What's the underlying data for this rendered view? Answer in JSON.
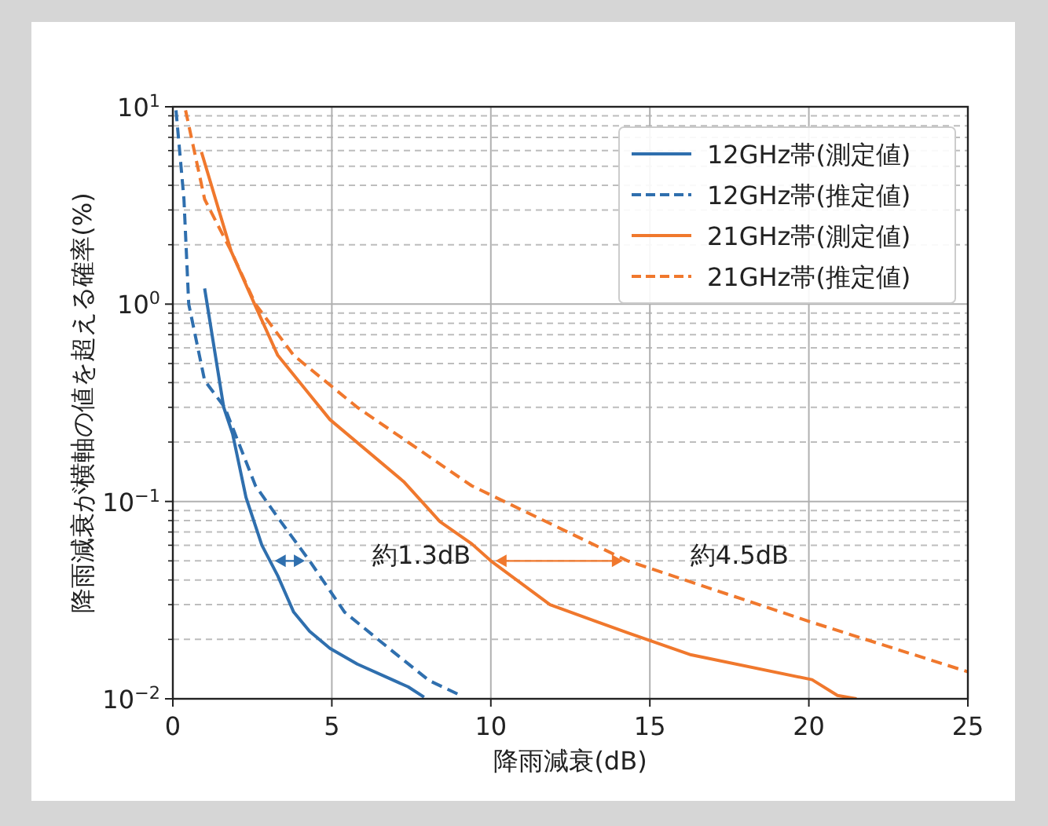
{
  "chart_data": {
    "type": "line",
    "xlabel": "降雨減衰(dB)",
    "ylabel": "降雨減衰が横軸の値を超える確率(%)",
    "xlim": [
      0,
      25
    ],
    "ylim": [
      0.01,
      10
    ],
    "log": "y",
    "xticks": [
      0,
      5,
      10,
      15,
      20,
      25
    ],
    "yticks": [
      {
        "value": 0.01,
        "label": "10$^{−2}$"
      },
      {
        "value": 0.1,
        "label": "10$^{−1}$"
      },
      {
        "value": 1,
        "label": "10$^{0}$"
      },
      {
        "value": 10,
        "label": "10$^{1}$"
      }
    ],
    "grid": true,
    "legend": "top right",
    "series": [
      {
        "name": "12GHz帯(測定値)",
        "color": "#2f6fae",
        "line_style": "solid",
        "x": [
          1.0,
          1.6,
          1.88,
          2.3,
          2.8,
          3.3,
          3.8,
          4.3,
          4.94,
          5.8,
          6.8,
          7.4,
          7.9
        ],
        "values": [
          1.2,
          0.3,
          0.22,
          0.105,
          0.06,
          0.042,
          0.0275,
          0.022,
          0.018,
          0.015,
          0.0127,
          0.0115,
          0.0102
        ]
      },
      {
        "name": "12GHz帯(推定値)",
        "color": "#2f6fae",
        "line_style": "dashed",
        "x": [
          0.1,
          0.35,
          0.5,
          1.0,
          1.63,
          2.6,
          3.3,
          4.3,
          5.4,
          6.8,
          8.05,
          9.05
        ],
        "values": [
          9.6,
          3.4,
          1.0,
          0.41,
          0.3,
          0.12,
          0.083,
          0.05,
          0.0275,
          0.018,
          0.0124,
          0.0104
        ]
      },
      {
        "name": "21GHz帯(測定値)",
        "color": "#f0782d",
        "line_style": "solid",
        "x": [
          0.9,
          1.83,
          2.57,
          3.3,
          4.94,
          7.26,
          8.4,
          9.4,
          10.0,
          11.86,
          14.3,
          16.3,
          20.1,
          20.9,
          21.5
        ],
        "values": [
          5.9,
          1.86,
          1.0,
          0.55,
          0.26,
          0.126,
          0.079,
          0.061,
          0.05,
          0.03,
          0.0216,
          0.0167,
          0.0125,
          0.0104,
          0.01
        ]
      },
      {
        "name": "21GHz帯(推定値)",
        "color": "#f0782d",
        "line_style": "dashed",
        "x": [
          0.4,
          1.0,
          1.83,
          2.6,
          3.8,
          5.8,
          9.4,
          14.3,
          20.1,
          25.0
        ],
        "values": [
          9.6,
          3.4,
          1.86,
          1.0,
          0.55,
          0.3,
          0.12,
          0.05,
          0.0244,
          0.0137
        ]
      }
    ],
    "annotations": [
      {
        "text": "約1.3dB",
        "x": 4.3,
        "y": 0.05
      },
      {
        "text": "約4.5dB",
        "x": 14.3,
        "y": 0.05
      }
    ]
  }
}
